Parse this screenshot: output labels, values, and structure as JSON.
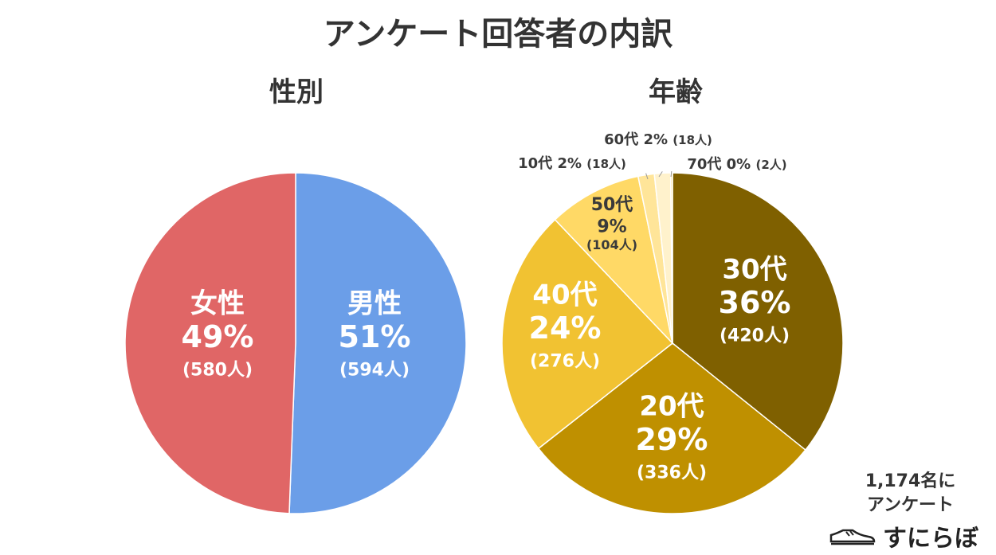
{
  "title": "アンケート回答者の内訳",
  "note": {
    "line1": "1,174名に",
    "line2": "アンケート"
  },
  "logo": {
    "text": "すにらぼ",
    "icon": "sneaker-icon"
  },
  "chart_data": [
    {
      "type": "pie",
      "title": "性別",
      "slices": [
        {
          "name": "男性",
          "percent": "51%",
          "count": "(594人)",
          "value": 594,
          "color": "#6b9ee8"
        },
        {
          "name": "女性",
          "percent": "49%",
          "count": "(580人)",
          "value": 580,
          "color": "#e06666"
        }
      ]
    },
    {
      "type": "pie",
      "title": "年齢",
      "slices": [
        {
          "name": "30代",
          "percent": "36%",
          "count": "(420人)",
          "value": 420,
          "color": "#7f6000"
        },
        {
          "name": "20代",
          "percent": "29%",
          "count": "(336人)",
          "value": 336,
          "color": "#bf9000"
        },
        {
          "name": "40代",
          "percent": "24%",
          "count": "(276人)",
          "value": 276,
          "color": "#f1c232"
        },
        {
          "name": "50代",
          "percent": "9%",
          "count": "(104人)",
          "value": 104,
          "color": "#ffd966"
        },
        {
          "name": "10代",
          "percent": "2%",
          "count": "(18人)",
          "value": 18,
          "color": "#ffe599"
        },
        {
          "name": "60代",
          "percent": "2%",
          "count": "(18人)",
          "value": 18,
          "color": "#fff2cc"
        },
        {
          "name": "70代",
          "percent": "0%",
          "count": "(2人)",
          "value": 2,
          "color": "#ffe08a"
        }
      ]
    }
  ]
}
